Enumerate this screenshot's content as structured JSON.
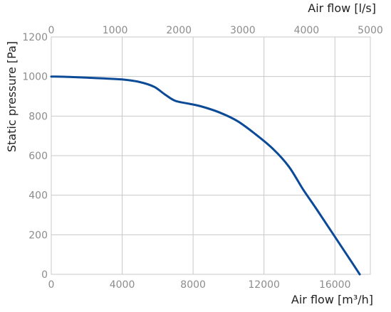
{
  "chart_data": {
    "type": "line",
    "ylabel": "Static pressure [Pa]",
    "xlabel": "Air flow [m³/h]",
    "x2label": "Air flow [l/s]",
    "xlim": [
      0,
      18000
    ],
    "ylim": [
      0,
      1200
    ],
    "x2lim": [
      0,
      5000
    ],
    "xticks": [
      0,
      4000,
      8000,
      12000,
      16000
    ],
    "xtick_labels": [
      "0",
      "4000",
      "8000",
      "12000",
      "16000"
    ],
    "x2ticks": [
      0,
      1000,
      2000,
      3000,
      4000,
      5000
    ],
    "x2tick_labels": [
      "0",
      "1000",
      "2000",
      "3000",
      "4000",
      "5000"
    ],
    "yticks": [
      0,
      200,
      400,
      600,
      800,
      1000,
      1200
    ],
    "ytick_labels": [
      "0",
      "200",
      "400",
      "600",
      "800",
      "1000",
      "1200"
    ],
    "grid": true,
    "line_color": "#0b4a96",
    "series": [
      {
        "x": [
          0,
          1000,
          2000,
          3000,
          4000,
          5000,
          5800,
          6400,
          7000,
          7800,
          8500,
          9500,
          10500,
          11500,
          12500,
          13400,
          14200,
          15000,
          16000,
          17000,
          17400
        ],
        "y": [
          1000,
          998,
          994,
          990,
          985,
          972,
          948,
          910,
          877,
          862,
          848,
          818,
          775,
          710,
          635,
          545,
          430,
          325,
          190,
          55,
          0
        ]
      }
    ]
  }
}
